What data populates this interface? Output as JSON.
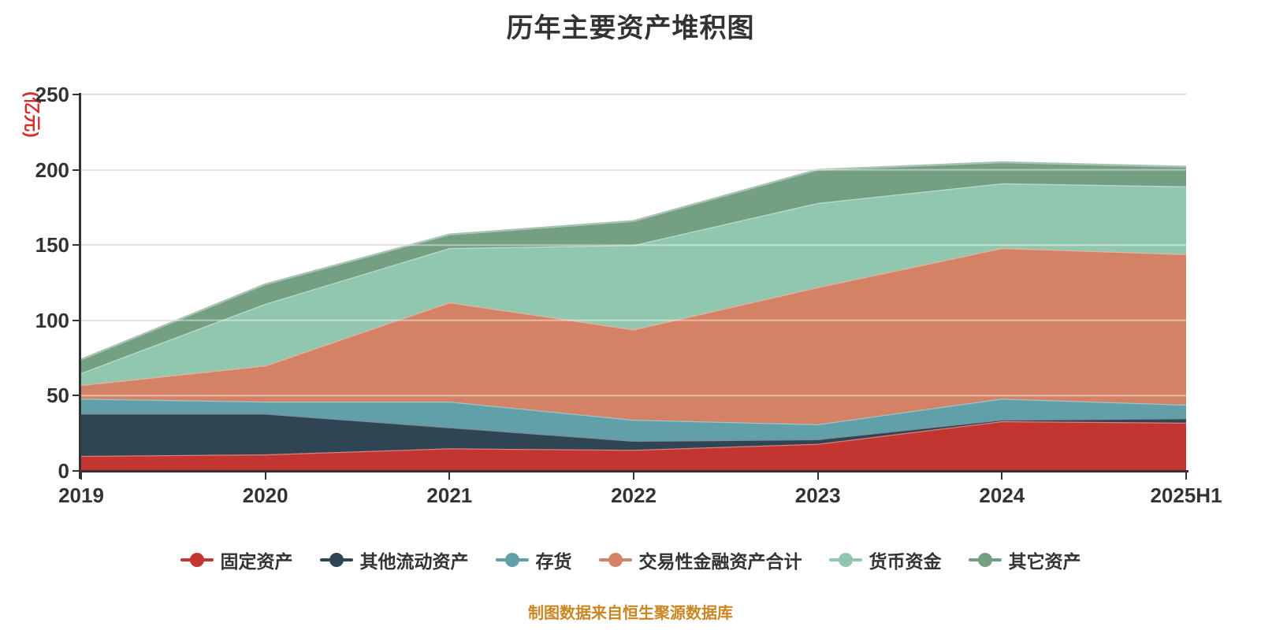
{
  "title": "历年主要资产堆积图",
  "y_axis": {
    "name": "(亿元)",
    "name_color": "#d03030",
    "ticks": [
      0,
      50,
      100,
      150,
      200,
      250
    ]
  },
  "x_axis": {
    "labels": [
      "2019",
      "2020",
      "2021",
      "2022",
      "2023",
      "2024",
      "2025H1"
    ]
  },
  "footer": {
    "source_note": "制图数据来自恒生聚源数据库",
    "color": "#ca8622"
  },
  "chart_data": {
    "type": "area",
    "stacked": true,
    "title": "历年主要资产堆积图",
    "ylabel": "(亿元)",
    "ylim": [
      0,
      250
    ],
    "grid": true,
    "legend_position": "bottom",
    "categories": [
      "2019",
      "2020",
      "2021",
      "2022",
      "2023",
      "2024",
      "2025H1"
    ],
    "series": [
      {
        "name": "固定资产",
        "color": "#c23531",
        "values": [
          10,
          11,
          15,
          14,
          18,
          33,
          32
        ]
      },
      {
        "name": "其他流动资产",
        "color": "#2f4554",
        "values": [
          28,
          27,
          14,
          6,
          3,
          1,
          3
        ]
      },
      {
        "name": "存货",
        "color": "#61a0a8",
        "values": [
          10,
          8,
          17,
          14,
          10,
          14,
          9
        ]
      },
      {
        "name": "交易性金融资产合计",
        "color": "#d48265",
        "values": [
          9,
          24,
          66,
          60,
          91,
          100,
          100
        ]
      },
      {
        "name": "货币资金",
        "color": "#91c7ae",
        "values": [
          8,
          41,
          36,
          56,
          56,
          43,
          45
        ]
      },
      {
        "name": "其它资产",
        "color": "#749f83",
        "values": [
          9,
          13,
          9,
          16,
          22,
          14,
          13
        ]
      }
    ]
  }
}
